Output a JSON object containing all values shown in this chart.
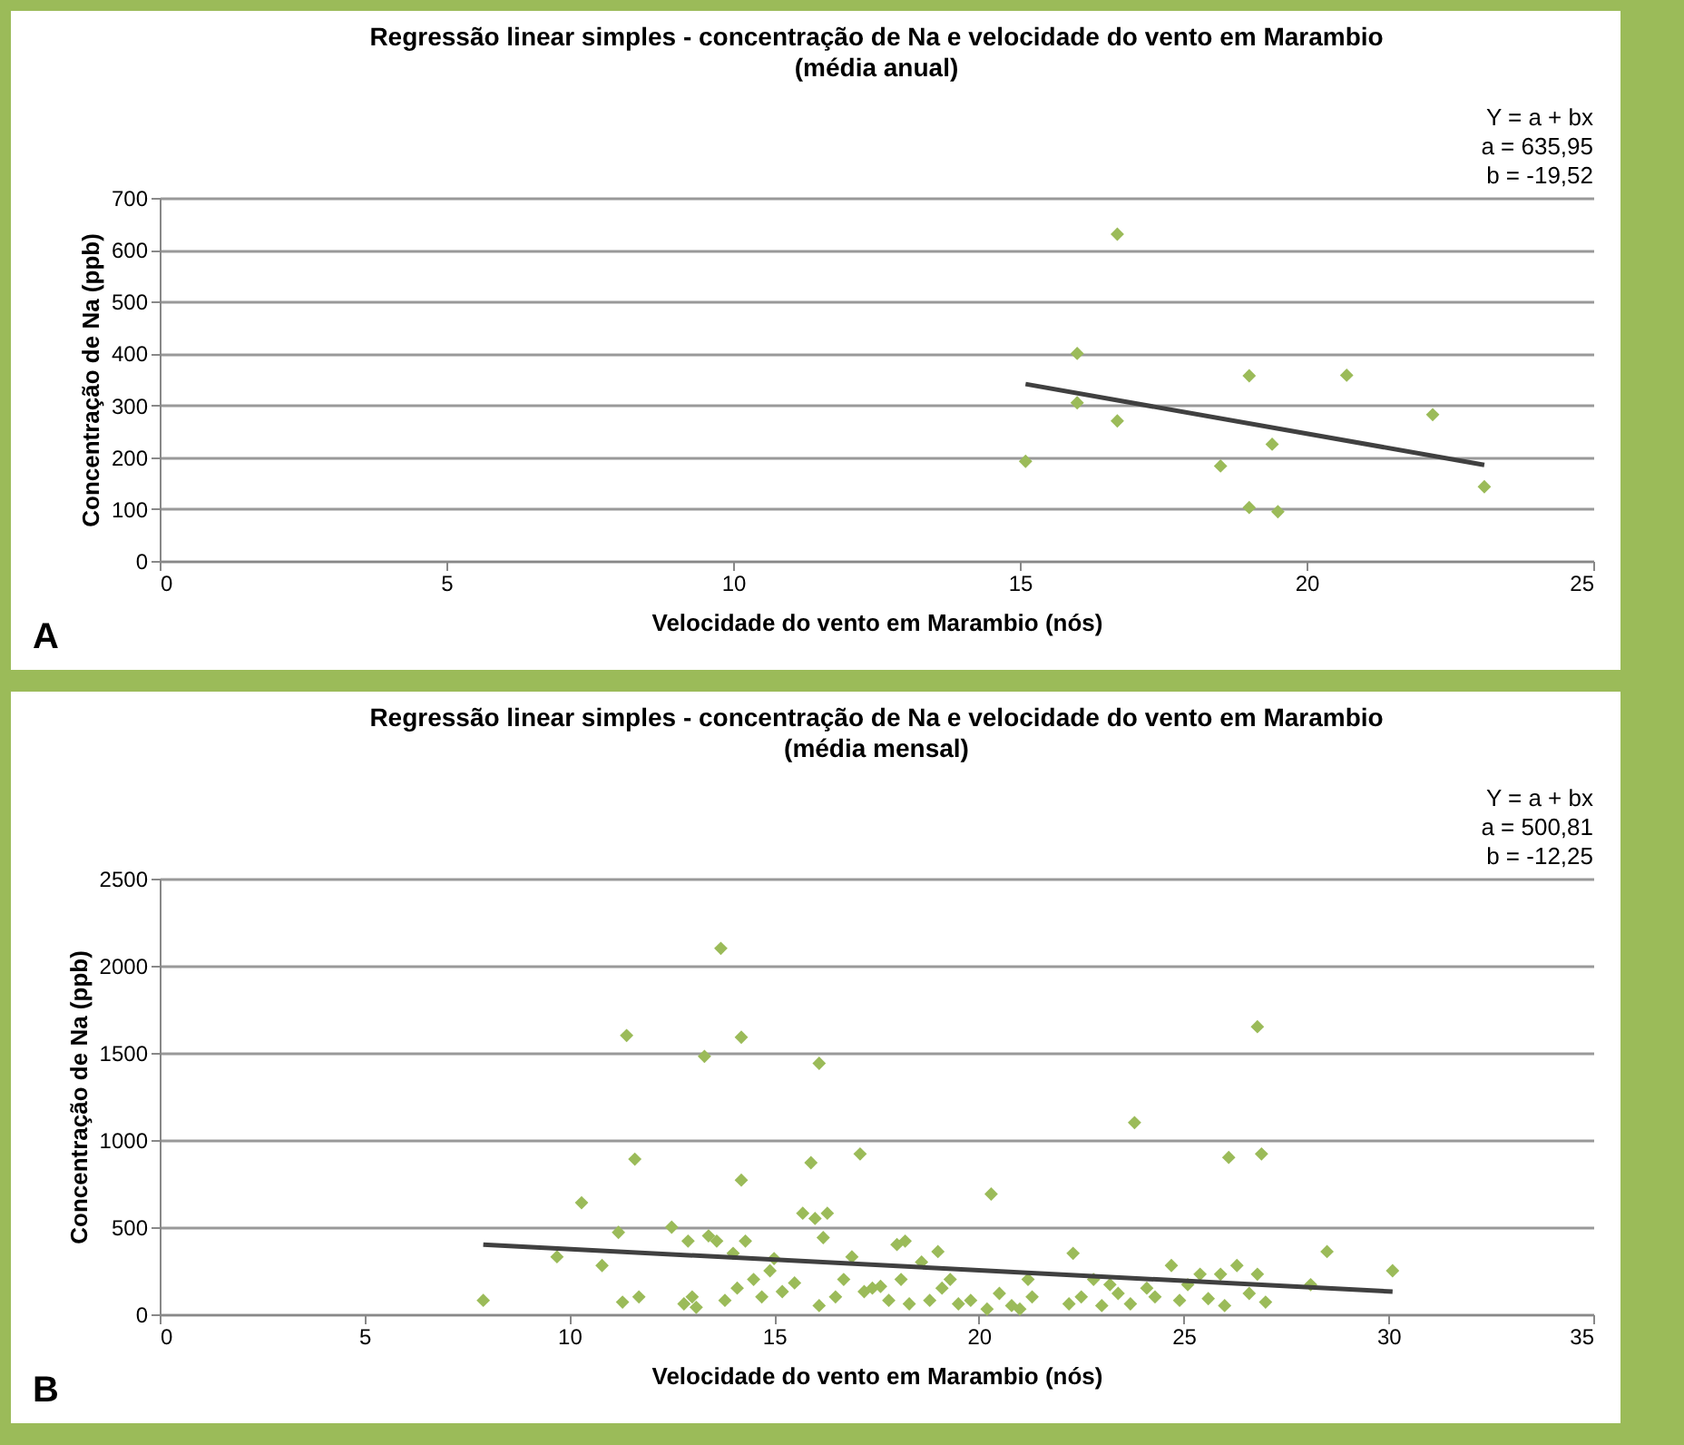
{
  "chart_data": [
    {
      "type": "scatter",
      "title": "Regressão linear simples - concentração de Na e velocidade do vento em Marambio",
      "subtitle": "(média anual)",
      "xlabel": "Velocidade do vento em Marambio (nós)",
      "ylabel": "Concentração de Na (ppb)",
      "annotations": [
        "Y =  a + bx",
        "a = 635,95",
        "b = -19,52",
        "A"
      ],
      "xlim": [
        0,
        25
      ],
      "xticks": [
        0,
        5,
        10,
        15,
        20,
        25
      ],
      "ylim": [
        0,
        700
      ],
      "yticks": [
        0,
        100,
        200,
        300,
        400,
        500,
        600,
        700
      ],
      "grid": "y",
      "series": [
        {
          "marker": "diamond",
          "color": "#9bbb59",
          "x": [
            15.1,
            16,
            16,
            16.7,
            16.7,
            18.5,
            19,
            19,
            19.4,
            19.5,
            20.7,
            22.2,
            23.1
          ],
          "values": [
            192,
            400,
            305,
            630,
            270,
            183,
            357,
            103,
            225,
            95,
            358,
            282,
            143
          ]
        },
        {
          "type": "line",
          "color": "#404040",
          "x": [
            15.1,
            23.1
          ],
          "values": [
            341,
            185
          ]
        }
      ]
    },
    {
      "type": "scatter",
      "title": "Regressão linear simples - concentração de Na e velocidade do vento em Marambio",
      "subtitle": "(média mensal)",
      "xlabel": "Velocidade do vento em Marambio (nós)",
      "ylabel": "Concentração de Na (ppb)",
      "annotations": [
        "Y =  a + bx",
        "a = 500,81",
        "b = -12,25",
        "B"
      ],
      "xlim": [
        0,
        35
      ],
      "xticks": [
        0,
        5,
        10,
        15,
        20,
        25,
        30,
        35
      ],
      "ylim": [
        0,
        2500
      ],
      "yticks": [
        0,
        500,
        1000,
        1500,
        2000,
        2500
      ],
      "grid": "y",
      "series": [
        {
          "marker": "diamond",
          "color": "#9bbb59",
          "x": [
            7.9,
            9.7,
            10.3,
            10.8,
            11.2,
            11.4,
            11.3,
            11.6,
            11.7,
            12.5,
            12.8,
            12.9,
            13,
            13.1,
            13.3,
            13.4,
            13.6,
            13.7,
            13.8,
            14,
            14.2,
            14.2,
            14.3,
            14.1,
            14.5,
            14.7,
            14.9,
            15,
            15.2,
            15.5,
            15.7,
            15.9,
            16,
            16.1,
            16.2,
            16.3,
            16.1,
            16.5,
            16.7,
            16.9,
            17.1,
            17.2,
            17.4,
            17.6,
            17.8,
            18,
            18.2,
            18.1,
            18.3,
            18.6,
            18.8,
            19,
            19.1,
            19.3,
            19.5,
            19.8,
            20.2,
            20.3,
            20.5,
            20.8,
            21,
            21.2,
            21.3,
            22.2,
            22.3,
            22.5,
            22.8,
            23,
            23.2,
            23.4,
            23.8,
            23.7,
            24.1,
            24.3,
            24.7,
            24.9,
            25.1,
            25.4,
            25.6,
            25.9,
            26.1,
            26.3,
            26,
            26.6,
            26.8,
            26.9,
            26.8,
            27,
            28.1,
            28.5,
            30.1
          ],
          "values": [
            80,
            330,
            640,
            280,
            470,
            1600,
            70,
            890,
            100,
            500,
            60,
            420,
            100,
            40,
            1480,
            450,
            420,
            2100,
            80,
            350,
            1590,
            770,
            420,
            150,
            200,
            100,
            250,
            320,
            130,
            180,
            580,
            870,
            550,
            1440,
            440,
            580,
            50,
            100,
            200,
            330,
            920,
            130,
            150,
            160,
            80,
            400,
            420,
            200,
            60,
            300,
            80,
            360,
            150,
            200,
            60,
            80,
            30,
            690,
            120,
            50,
            30,
            200,
            100,
            60,
            350,
            100,
            200,
            50,
            170,
            120,
            1100,
            60,
            150,
            100,
            280,
            80,
            170,
            230,
            90,
            230,
            900,
            280,
            50,
            120,
            1650,
            920,
            230,
            70,
            170,
            360,
            250
          ]
        },
        {
          "type": "line",
          "color": "#404040",
          "x": [
            7.9,
            30.1
          ],
          "values": [
            400,
            130
          ]
        }
      ]
    }
  ]
}
